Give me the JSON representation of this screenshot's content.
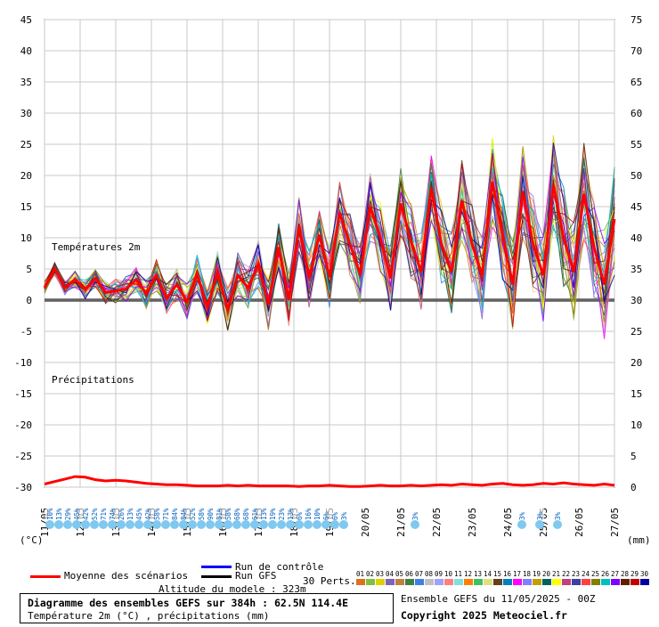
{
  "chart_data": {
    "type": "line",
    "title": "Diagramme des ensembles GEFS sur 384h : 62.5N 114.4E",
    "subtitle": "Température 2m (°C) , précipitations (mm)",
    "left_axis": {
      "unit_label": "(°C)",
      "ticks": [
        "45",
        "40",
        "35",
        "30",
        "25",
        "20",
        "15",
        "10",
        "5",
        "0",
        "-5",
        "-10",
        "-15",
        "-20",
        "-25",
        "-30"
      ],
      "range": [
        -30,
        45
      ]
    },
    "right_axis": {
      "unit_label": "(mm)",
      "ticks": [
        "75",
        "70",
        "65",
        "60",
        "55",
        "50",
        "45",
        "40",
        "35",
        "30",
        "25",
        "20",
        "15",
        "10",
        "5",
        "0"
      ],
      "range": [
        0,
        75
      ]
    },
    "x_labels": [
      "11/05",
      "12/05",
      "13/05",
      "14/05",
      "15/05",
      "16/05",
      "17/05",
      "18/05",
      "19/05",
      "20/05",
      "21/05",
      "22/05",
      "23/05",
      "24/05",
      "25/05",
      "26/05",
      "27/05"
    ],
    "panel_labels": {
      "temperature": "Températures 2m",
      "precip": "Précipitations"
    },
    "grid": true,
    "temperature_mean": [
      2.0,
      5.0,
      2.0,
      3.3,
      1.7,
      3.5,
      1.2,
      1.5,
      1.8,
      3.3,
      1.0,
      4.0,
      0.3,
      2.5,
      -0.2,
      4.2,
      -1.2,
      4.5,
      -1.5,
      4.0,
      2.0,
      5.7,
      -0.7,
      8.5,
      0.0,
      12.0,
      3.5,
      10.5,
      3.7,
      14.0,
      9.0,
      4.2,
      15.0,
      10.0,
      3.5,
      15.5,
      9.5,
      4.5,
      18.0,
      9.0,
      4.5,
      16.0,
      9.0,
      4.0,
      19.0,
      10.5,
      2.5,
      17.5,
      9.0,
      4.0,
      18.5,
      10.0,
      4.5,
      17.0,
      8.5,
      2.5,
      13.0
    ],
    "precip_mean": [
      0.5,
      0.9,
      1.3,
      1.7,
      1.6,
      1.2,
      1.0,
      1.1,
      1.0,
      0.8,
      0.6,
      0.5,
      0.4,
      0.4,
      0.3,
      0.2,
      0.2,
      0.2,
      0.3,
      0.2,
      0.3,
      0.2,
      0.2,
      0.2,
      0.2,
      0.1,
      0.2,
      0.2,
      0.3,
      0.2,
      0.1,
      0.1,
      0.2,
      0.3,
      0.2,
      0.2,
      0.3,
      0.2,
      0.3,
      0.4,
      0.3,
      0.5,
      0.4,
      0.3,
      0.5,
      0.6,
      0.4,
      0.3,
      0.4,
      0.6,
      0.5,
      0.7,
      0.5,
      0.4,
      0.3,
      0.5,
      0.3
    ],
    "snow_probabilities": [
      {
        "day": 0.15,
        "value": "10%"
      },
      {
        "day": 0.4,
        "value": "13%"
      },
      {
        "day": 0.65,
        "value": "29%"
      },
      {
        "day": 0.9,
        "value": "45%"
      },
      {
        "day": 1.15,
        "value": "42%"
      },
      {
        "day": 1.4,
        "value": "52%"
      },
      {
        "day": 1.65,
        "value": "71%"
      },
      {
        "day": 1.9,
        "value": "74%"
      },
      {
        "day": 2.15,
        "value": "26%"
      },
      {
        "day": 2.4,
        "value": "13%"
      },
      {
        "day": 2.65,
        "value": "45%"
      },
      {
        "day": 2.9,
        "value": "42%"
      },
      {
        "day": 3.15,
        "value": "58%"
      },
      {
        "day": 3.4,
        "value": "71%"
      },
      {
        "day": 3.65,
        "value": "84%"
      },
      {
        "day": 3.9,
        "value": "84%"
      },
      {
        "day": 4.15,
        "value": "52%"
      },
      {
        "day": 4.4,
        "value": "58%"
      },
      {
        "day": 4.65,
        "value": "90%"
      },
      {
        "day": 4.9,
        "value": "81%"
      },
      {
        "day": 5.15,
        "value": "58%"
      },
      {
        "day": 5.4,
        "value": "68%"
      },
      {
        "day": 5.65,
        "value": "68%"
      },
      {
        "day": 5.9,
        "value": "61%"
      },
      {
        "day": 6.15,
        "value": "13%"
      },
      {
        "day": 6.4,
        "value": "19%"
      },
      {
        "day": 6.65,
        "value": "23%"
      },
      {
        "day": 6.9,
        "value": "13%"
      },
      {
        "day": 7.15,
        "value": "6%"
      },
      {
        "day": 7.4,
        "value": "16%"
      },
      {
        "day": 7.65,
        "value": "10%"
      },
      {
        "day": 7.9,
        "value": "6%"
      },
      {
        "day": 8.15,
        "value": "6%"
      },
      {
        "day": 8.4,
        "value": "3%"
      },
      {
        "day": 10.4,
        "value": "3%"
      },
      {
        "day": 13.4,
        "value": "3%"
      },
      {
        "day": 13.9,
        "value": "3%"
      },
      {
        "day": 14.4,
        "value": "3%"
      }
    ]
  },
  "legend": {
    "mean_label": "Moyenne des scénarios",
    "control_label": "Run de contrôle",
    "gfs_label": "Run GFS",
    "perts_label": "30 Perts.",
    "mean_color": "#ff0000",
    "control_color": "#0000ff",
    "gfs_color": "#000000",
    "pert_numbers": [
      "01",
      "02",
      "03",
      "04",
      "05",
      "06",
      "07",
      "08",
      "09",
      "10",
      "11",
      "12",
      "13",
      "14",
      "15",
      "16",
      "17",
      "18",
      "19",
      "20",
      "21",
      "22",
      "23",
      "24",
      "25",
      "26",
      "27",
      "28",
      "29",
      "30"
    ],
    "pert_colors": [
      "#e07020",
      "#80c040",
      "#e0d000",
      "#8060c0",
      "#c08040",
      "#408040",
      "#4080e0",
      "#c0c0c0",
      "#a0a0ff",
      "#ff8080",
      "#80e0e0",
      "#ff8000",
      "#40c060",
      "#e0e080",
      "#604020",
      "#0080c0",
      "#ff00ff",
      "#8080ff",
      "#c0a000",
      "#006060",
      "#ffff00",
      "#c04080",
      "#4040a0",
      "#ff4040",
      "#808000",
      "#00c0c0",
      "#8000ff",
      "#602000",
      "#c00000",
      "#0000a0"
    ]
  },
  "footer": {
    "title": "Diagramme des ensembles GEFS sur 384h : 62.5N 114.4E",
    "subtitle": "Température 2m (°C) , précipitations (mm)",
    "altitude": "Altitude du modele : 323m",
    "run_info": "Ensemble GEFS du 11/05/2025 - 00Z",
    "copyright": "Copyright 2025 Meteociel.fr"
  }
}
